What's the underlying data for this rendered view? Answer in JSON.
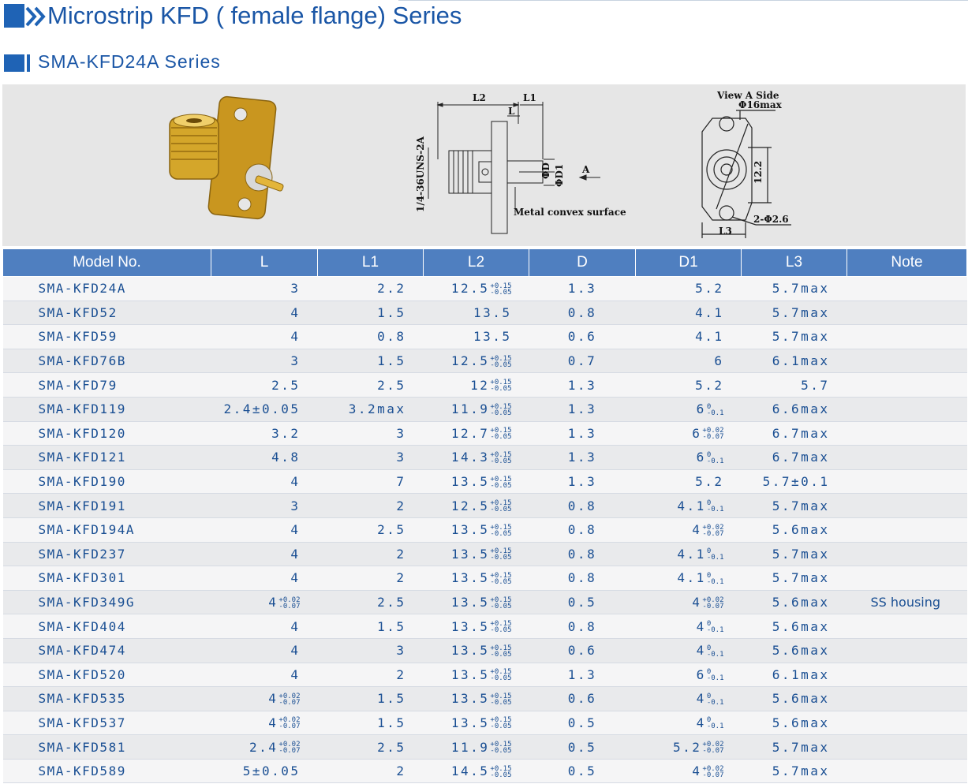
{
  "header": {
    "title": "Microstrip KFD ( female flange) Series",
    "subtitle": "SMA-KFD24A Series"
  },
  "drawing": {
    "labels": {
      "l2": "L2",
      "l1": "L1",
      "l": "L",
      "thread": "1/4-36UNS-2A",
      "phi_d": "ΦD",
      "phi_d1": "ΦD1",
      "view_arrow": "A",
      "metal_surface": "Metal convex surface",
      "view_a_side": "View A Side",
      "phi16max": "Φ16max",
      "dim_12_2": "12.2",
      "two_phi_2_6": "2-Φ2.6",
      "l3": "L3"
    }
  },
  "table": {
    "headers": [
      "Model No.",
      "L",
      "L1",
      "L2",
      "D",
      "D1",
      "L3",
      "Note"
    ],
    "rows": [
      {
        "model": "SMA-KFD24A",
        "L": "3",
        "L1": "2.2",
        "L2": "12.5",
        "L2_tol_up": "+0.15",
        "L2_tol_dn": "-0.05",
        "D": "1.3",
        "D1": "5.2",
        "L3": "5.7max",
        "note": ""
      },
      {
        "model": "SMA-KFD52",
        "L": "4",
        "L1": "1.5",
        "L2": "13.5",
        "D": "0.8",
        "D1": "4.1",
        "L3": "5.7max",
        "note": ""
      },
      {
        "model": "SMA-KFD59",
        "L": "4",
        "L1": "0.8",
        "L2": "13.5",
        "D": "0.6",
        "D1": "4.1",
        "L3": "5.7max",
        "note": ""
      },
      {
        "model": "SMA-KFD76B",
        "L": "3",
        "L1": "1.5",
        "L2": "12.5",
        "L2_tol_up": "+0.15",
        "L2_tol_dn": "-0.05",
        "D": "0.7",
        "D1": "6",
        "L3": "6.1max",
        "note": ""
      },
      {
        "model": "SMA-KFD79",
        "L": "2.5",
        "L1": "2.5",
        "L2": "12",
        "L2_tol_up": "+0.15",
        "L2_tol_dn": "-0.05",
        "D": "1.3",
        "D1": "5.2",
        "L3": "5.7",
        "note": ""
      },
      {
        "model": "SMA-KFD119",
        "L": "2.4±0.05",
        "L1": "3.2max",
        "L2": "11.9",
        "L2_tol_up": "+0.15",
        "L2_tol_dn": "-0.05",
        "D": "1.3",
        "D1": "6",
        "D1_tol_up": "0",
        "D1_tol_dn": "-0.1",
        "L3": "6.6max",
        "note": ""
      },
      {
        "model": "SMA-KFD120",
        "L": "3.2",
        "L1": "3",
        "L2": "12.7",
        "L2_tol_up": "+0.15",
        "L2_tol_dn": "-0.05",
        "D": "1.3",
        "D1": "6",
        "D1_tol_up": "+0.02",
        "D1_tol_dn": "-0.07",
        "L3": "6.7max",
        "note": ""
      },
      {
        "model": "SMA-KFD121",
        "L": "4.8",
        "L1": "3",
        "L2": "14.3",
        "L2_tol_up": "+0.15",
        "L2_tol_dn": "-0.05",
        "D": "1.3",
        "D1": "6",
        "D1_tol_up": "0",
        "D1_tol_dn": "-0.1",
        "L3": "6.7max",
        "note": ""
      },
      {
        "model": "SMA-KFD190",
        "L": "4",
        "L1": "7",
        "L2": "13.5",
        "L2_tol_up": "+0.15",
        "L2_tol_dn": "-0.05",
        "D": "1.3",
        "D1": "5.2",
        "L3": "5.7±0.1",
        "note": ""
      },
      {
        "model": "SMA-KFD191",
        "L": "3",
        "L1": "2",
        "L2": "12.5",
        "L2_tol_up": "+0.15",
        "L2_tol_dn": "-0.05",
        "D": "0.8",
        "D1": "4.1",
        "D1_tol_up": "0",
        "D1_tol_dn": "-0.1",
        "L3": "5.7max",
        "note": ""
      },
      {
        "model": "SMA-KFD194A",
        "L": "4",
        "L1": "2.5",
        "L2": "13.5",
        "L2_tol_up": "+0.15",
        "L2_tol_dn": "-0.05",
        "D": "0.8",
        "D1": "4",
        "D1_tol_up": "+0.02",
        "D1_tol_dn": "-0.07",
        "L3": "5.6max",
        "note": ""
      },
      {
        "model": "SMA-KFD237",
        "L": "4",
        "L1": "2",
        "L2": "13.5",
        "L2_tol_up": "+0.15",
        "L2_tol_dn": "-0.05",
        "D": "0.8",
        "D1": "4.1",
        "D1_tol_up": "0",
        "D1_tol_dn": "-0.1",
        "L3": "5.7max",
        "note": ""
      },
      {
        "model": "SMA-KFD301",
        "L": "4",
        "L1": "2",
        "L2": "13.5",
        "L2_tol_up": "+0.15",
        "L2_tol_dn": "-0.05",
        "D": "0.8",
        "D1": "4.1",
        "D1_tol_up": "0",
        "D1_tol_dn": "-0.1",
        "L3": "5.7max",
        "note": ""
      },
      {
        "model": "SMA-KFD349G",
        "L": "4",
        "L_tol_up": "+0.02",
        "L_tol_dn": "-0.07",
        "L1": "2.5",
        "L2": "13.5",
        "L2_tol_up": "+0.15",
        "L2_tol_dn": "-0.05",
        "D": "0.5",
        "D1": "4",
        "D1_tol_up": "+0.02",
        "D1_tol_dn": "-0.07",
        "L3": "5.6max",
        "note": "SS housing"
      },
      {
        "model": "SMA-KFD404",
        "L": "4",
        "L1": "1.5",
        "L2": "13.5",
        "L2_tol_up": "+0.15",
        "L2_tol_dn": "-0.05",
        "D": "0.8",
        "D1": "4",
        "D1_tol_up": "0",
        "D1_tol_dn": "-0.1",
        "L3": "5.6max",
        "note": ""
      },
      {
        "model": "SMA-KFD474",
        "L": "4",
        "L1": "3",
        "L2": "13.5",
        "L2_tol_up": "+0.15",
        "L2_tol_dn": "-0.05",
        "D": "0.6",
        "D1": "4",
        "D1_tol_up": "0",
        "D1_tol_dn": "-0.1",
        "L3": "5.6max",
        "note": ""
      },
      {
        "model": "SMA-KFD520",
        "L": "4",
        "L1": "2",
        "L2": "13.5",
        "L2_tol_up": "+0.15",
        "L2_tol_dn": "-0.05",
        "D": "1.3",
        "D1": "6",
        "D1_tol_up": "0",
        "D1_tol_dn": "-0.1",
        "L3": "6.1max",
        "note": ""
      },
      {
        "model": "SMA-KFD535",
        "L": "4",
        "L_tol_up": "+0.02",
        "L_tol_dn": "-0.07",
        "L1": "1.5",
        "L2": "13.5",
        "L2_tol_up": "+0.15",
        "L2_tol_dn": "-0.05",
        "D": "0.6",
        "D1": "4",
        "D1_tol_up": "0",
        "D1_tol_dn": "-0.1",
        "L3": "5.6max",
        "note": ""
      },
      {
        "model": "SMA-KFD537",
        "L": "4",
        "L_tol_up": "+0.02",
        "L_tol_dn": "-0.07",
        "L1": "1.5",
        "L2": "13.5",
        "L2_tol_up": "+0.15",
        "L2_tol_dn": "-0.05",
        "D": "0.5",
        "D1": "4",
        "D1_tol_up": "0",
        "D1_tol_dn": "-0.1",
        "L3": "5.6max",
        "note": ""
      },
      {
        "model": "SMA-KFD581",
        "L": "2.4",
        "L_tol_up": "+0.02",
        "L_tol_dn": "-0.07",
        "L1": "2.5",
        "L2": "11.9",
        "L2_tol_up": "+0.15",
        "L2_tol_dn": "-0.05",
        "D": "0.5",
        "D1": "5.2",
        "D1_tol_up": "+0.02",
        "D1_tol_dn": "-0.07",
        "L3": "5.7max",
        "note": ""
      },
      {
        "model": "SMA-KFD589",
        "L": "5±0.05",
        "L1": "2",
        "L2": "14.5",
        "L2_tol_up": "+0.15",
        "L2_tol_dn": "-0.05",
        "D": "0.5",
        "D1": "4",
        "D1_tol_up": "+0.02",
        "D1_tol_dn": "-0.07",
        "L3": "5.7max",
        "note": ""
      }
    ]
  },
  "colors": {
    "brand_blue": "#1f63b5",
    "header_blue": "#4f7fc0",
    "text_blue": "#1a4f93",
    "connector_gold": "#d4a62a"
  }
}
